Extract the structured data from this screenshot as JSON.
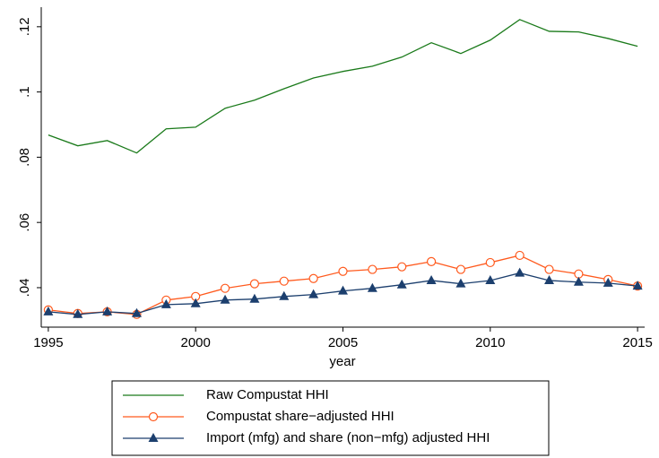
{
  "chart_data": {
    "type": "line",
    "x_label": "year",
    "x": [
      1995,
      1996,
      1997,
      1998,
      1999,
      2000,
      2001,
      2002,
      2003,
      2004,
      2005,
      2006,
      2007,
      2008,
      2009,
      2010,
      2011,
      2012,
      2013,
      2014,
      2015
    ],
    "series": [
      {
        "name": "Raw Compustat HHI",
        "color": "#1a7a1a",
        "marker": "none",
        "values": [
          0.0868,
          0.0835,
          0.0851,
          0.0813,
          0.0887,
          0.0892,
          0.095,
          0.0975,
          0.101,
          0.1043,
          0.1063,
          0.1079,
          0.1107,
          0.1151,
          0.1118,
          0.1159,
          0.1222,
          0.1186,
          0.1184,
          0.1164,
          0.114
        ]
      },
      {
        "name": "Compustat share−adjusted HHI",
        "color": "#ff5a1e",
        "marker": "circle",
        "values": [
          0.0332,
          0.0321,
          0.0326,
          0.0318,
          0.0362,
          0.0373,
          0.0398,
          0.0412,
          0.042,
          0.0428,
          0.045,
          0.0456,
          0.0464,
          0.048,
          0.0456,
          0.0477,
          0.0499,
          0.0456,
          0.0442,
          0.0425,
          0.0405
        ]
      },
      {
        "name": "Import (mfg) and share (non−mfg) adjusted HHI",
        "color": "#1c3f6e",
        "marker": "triangle",
        "values": [
          0.0326,
          0.0318,
          0.0326,
          0.0321,
          0.0348,
          0.0351,
          0.0362,
          0.0365,
          0.0373,
          0.0379,
          0.039,
          0.0398,
          0.0409,
          0.0422,
          0.0412,
          0.0422,
          0.0445,
          0.0422,
          0.0417,
          0.0414,
          0.0405
        ]
      }
    ],
    "xlim": [
      1994.76,
      2015.24
    ],
    "xticks": [
      1995,
      2000,
      2005,
      2010,
      2015
    ],
    "ylim": [
      0.0279,
      0.126
    ],
    "yticks": [
      {
        "value": 0.04,
        "label": ".04"
      },
      {
        "value": 0.06,
        "label": ".06"
      },
      {
        "value": 0.08,
        "label": ".08"
      },
      {
        "value": 0.1,
        "label": ".1"
      },
      {
        "value": 0.12,
        "label": ".12"
      }
    ],
    "grid": false,
    "legend": "bottom"
  }
}
